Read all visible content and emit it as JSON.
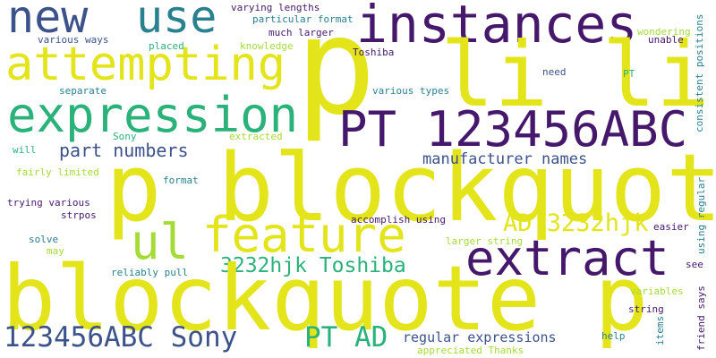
{
  "palette": {
    "yellow": "#e3e419",
    "purple": "#46186c",
    "teal": "#29808e",
    "green": "#2bb27b",
    "blue": "#3b528b",
    "lime": "#a5db36"
  },
  "words": [
    {
      "text": "new"
    },
    {
      "text": "use"
    },
    {
      "text": "instances"
    },
    {
      "text": "p"
    },
    {
      "text": "li li"
    },
    {
      "text": "attempting"
    },
    {
      "text": "expression"
    },
    {
      "text": "PT 123456ABC"
    },
    {
      "text": "part numbers"
    },
    {
      "text": "p blockquote"
    },
    {
      "text": "manufacturer names"
    },
    {
      "text": "ul"
    },
    {
      "text": "feature"
    },
    {
      "text": "AD 3232hjk"
    },
    {
      "text": "extract"
    },
    {
      "text": "3232hjk Toshiba"
    },
    {
      "text": "blockquote p"
    },
    {
      "text": "123456ABC Sony"
    },
    {
      "text": "PT AD"
    },
    {
      "text": "regular expressions"
    },
    {
      "text": "varying lengths"
    },
    {
      "text": "particular format"
    },
    {
      "text": "much larger"
    },
    {
      "text": "various ways"
    },
    {
      "text": "placed"
    },
    {
      "text": "knowledge"
    },
    {
      "text": "Toshiba"
    },
    {
      "text": "wondering"
    },
    {
      "text": "unable"
    },
    {
      "text": "need"
    },
    {
      "text": "PT"
    },
    {
      "text": "separate"
    },
    {
      "text": "various types"
    },
    {
      "text": "Sony"
    },
    {
      "text": "extracted"
    },
    {
      "text": "will"
    },
    {
      "text": "fairly limited"
    },
    {
      "text": "format"
    },
    {
      "text": "trying various"
    },
    {
      "text": "strpos"
    },
    {
      "text": "accomplish using"
    },
    {
      "text": "easier"
    },
    {
      "text": "solve"
    },
    {
      "text": "may"
    },
    {
      "text": "larger string"
    },
    {
      "text": "reliably pull"
    },
    {
      "text": "see"
    },
    {
      "text": "variables"
    },
    {
      "text": "string"
    },
    {
      "text": "help"
    },
    {
      "text": "appreciated Thanks"
    },
    {
      "text": "consistent positions"
    },
    {
      "text": "using regular"
    },
    {
      "text": "friend says"
    },
    {
      "text": "items"
    }
  ]
}
